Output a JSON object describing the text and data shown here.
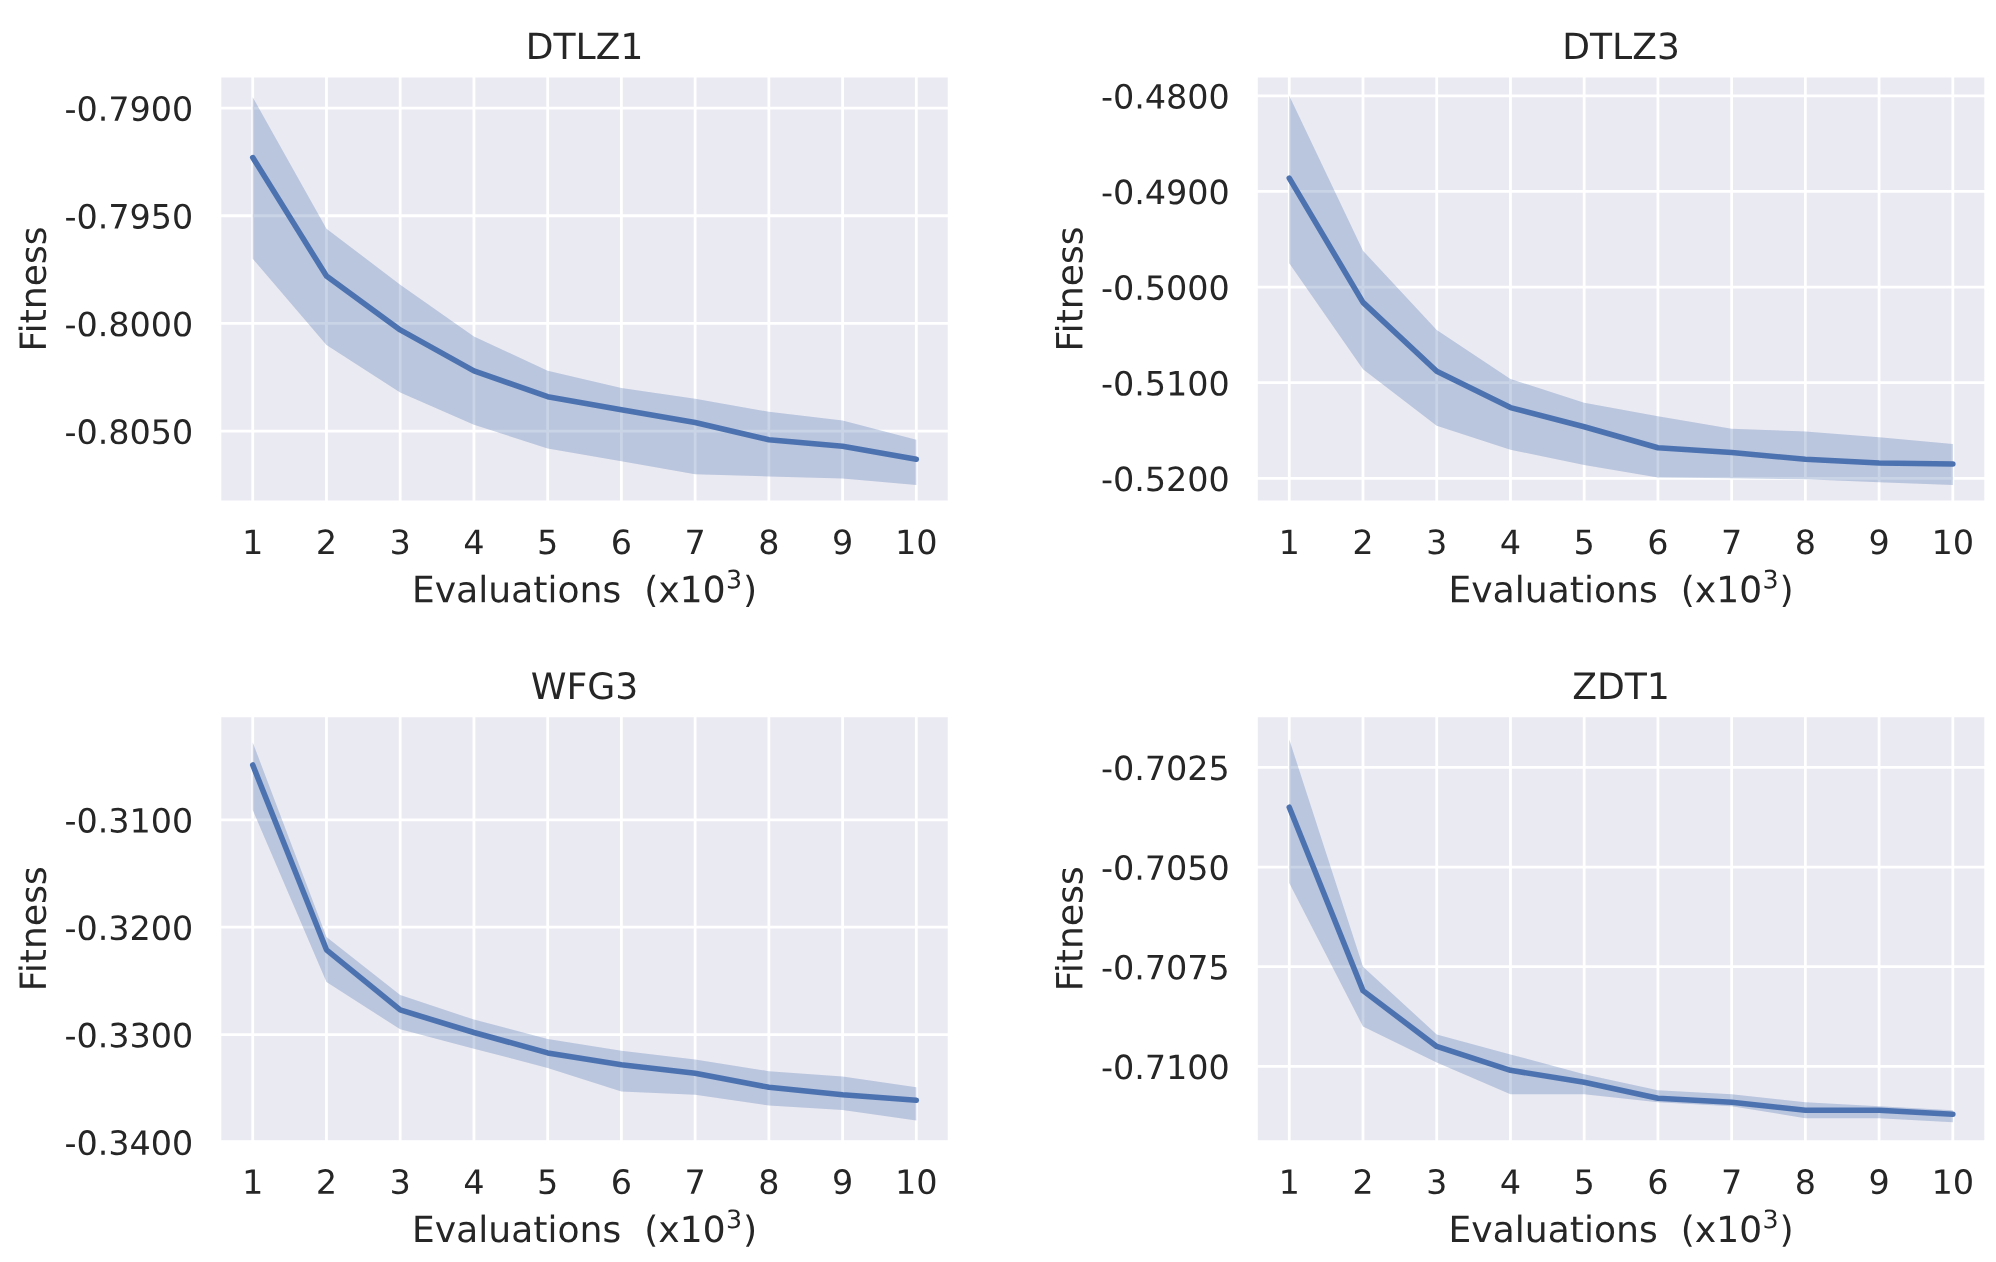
{
  "chart_data": [
    {
      "type": "line",
      "title": "DTLZ1",
      "xlabel": "Evaluations  (x10$^{3}$)",
      "ylabel": "Fitness",
      "x": [
        1,
        2,
        3,
        4,
        5,
        6,
        7,
        8,
        9,
        10
      ],
      "xlim": [
        0.55,
        10.45
      ],
      "xticks": [
        1,
        2,
        3,
        4,
        5,
        6,
        7,
        8,
        9,
        10
      ],
      "ylim": [
        -0.8083,
        -0.7885
      ],
      "yticks": [
        {
          "value": -0.805,
          "label": "-0.8050"
        },
        {
          "value": -0.8,
          "label": "-0.8000"
        },
        {
          "value": -0.795,
          "label": "-0.7950"
        },
        {
          "value": -0.79,
          "label": "-0.7900"
        }
      ],
      "grid": true,
      "legend": false,
      "series": [
        {
          "color": "#4c72b0",
          "values": [
            -0.7923,
            -0.7978,
            -0.8003,
            -0.8022,
            -0.8034,
            -0.804,
            -0.8046,
            -0.8054,
            -0.8057,
            -0.8063
          ],
          "upper": [
            -0.7895,
            -0.7956,
            -0.7982,
            -0.8006,
            -0.8022,
            -0.803,
            -0.8035,
            -0.8041,
            -0.8045,
            -0.8054
          ],
          "lower": [
            -0.797,
            -0.801,
            -0.8032,
            -0.8047,
            -0.8058,
            -0.8064,
            -0.807,
            -0.8071,
            -0.8072,
            -0.8075
          ]
        }
      ]
    },
    {
      "type": "line",
      "title": "DTLZ3",
      "xlabel": "Evaluations  (x10$^{3}$)",
      "ylabel": "Fitness",
      "x": [
        1,
        2,
        3,
        4,
        5,
        6,
        7,
        8,
        9,
        10
      ],
      "xlim": [
        0.55,
        10.45
      ],
      "xticks": [
        1,
        2,
        3,
        4,
        5,
        6,
        7,
        8,
        9,
        10
      ],
      "ylim": [
        -0.5225,
        -0.4779
      ],
      "yticks": [
        {
          "value": -0.52,
          "label": "-0.5200"
        },
        {
          "value": -0.51,
          "label": "-0.5100"
        },
        {
          "value": -0.5,
          "label": "-0.5000"
        },
        {
          "value": -0.49,
          "label": "-0.4900"
        },
        {
          "value": -0.48,
          "label": "-0.4800"
        }
      ],
      "grid": true,
      "legend": false,
      "series": [
        {
          "color": "#4c72b0",
          "values": [
            -0.4886,
            -0.5016,
            -0.5088,
            -0.5126,
            -0.5146,
            -0.5168,
            -0.5173,
            -0.518,
            -0.5184,
            -0.5185
          ],
          "upper": [
            -0.48,
            -0.4962,
            -0.5045,
            -0.5096,
            -0.5121,
            -0.5135,
            -0.5148,
            -0.5151,
            -0.5157,
            -0.5164
          ],
          "lower": [
            -0.4975,
            -0.5086,
            -0.5145,
            -0.517,
            -0.5186,
            -0.5199,
            -0.52,
            -0.5201,
            -0.5204,
            -0.5207
          ]
        }
      ]
    },
    {
      "type": "line",
      "title": "WFG3",
      "xlabel": "Evaluations  (x10$^{3}$)",
      "ylabel": "Fitness",
      "x": [
        1,
        2,
        3,
        4,
        5,
        6,
        7,
        8,
        9,
        10
      ],
      "xlim": [
        0.55,
        10.45
      ],
      "xticks": [
        1,
        2,
        3,
        4,
        5,
        6,
        7,
        8,
        9,
        10
      ],
      "ylim": [
        -0.34,
        -0.3003
      ],
      "yticks": [
        {
          "value": -0.34,
          "label": "-0.3400"
        },
        {
          "value": -0.33,
          "label": "-0.3300"
        },
        {
          "value": -0.32,
          "label": "-0.3200"
        },
        {
          "value": -0.31,
          "label": "-0.3100"
        }
      ],
      "grid": true,
      "legend": false,
      "series": [
        {
          "color": "#4c72b0",
          "values": [
            -0.3049,
            -0.3221,
            -0.3277,
            -0.3298,
            -0.3317,
            -0.3328,
            -0.3336,
            -0.3349,
            -0.3356,
            -0.3361
          ],
          "upper": [
            -0.3028,
            -0.3209,
            -0.3263,
            -0.3286,
            -0.3304,
            -0.3315,
            -0.3323,
            -0.3334,
            -0.3339,
            -0.3349
          ],
          "lower": [
            -0.3091,
            -0.3251,
            -0.3295,
            -0.3313,
            -0.3331,
            -0.3353,
            -0.3356,
            -0.3366,
            -0.337,
            -0.338
          ]
        }
      ]
    },
    {
      "type": "line",
      "title": "ZDT1",
      "xlabel": "Evaluations  (x10$^{3}$)",
      "ylabel": "Fitness",
      "x": [
        1,
        2,
        3,
        4,
        5,
        6,
        7,
        8,
        9,
        10
      ],
      "xlim": [
        0.55,
        10.45
      ],
      "xticks": [
        1,
        2,
        3,
        4,
        5,
        6,
        7,
        8,
        9,
        10
      ],
      "ylim": [
        -0.7119,
        -0.7012
      ],
      "yticks": [
        {
          "value": -0.71,
          "label": "-0.7100"
        },
        {
          "value": -0.7075,
          "label": "-0.7075"
        },
        {
          "value": -0.705,
          "label": "-0.7050"
        },
        {
          "value": -0.7025,
          "label": "-0.7025"
        }
      ],
      "grid": true,
      "legend": false,
      "series": [
        {
          "color": "#4c72b0",
          "values": [
            -0.7035,
            -0.7081,
            -0.7095,
            -0.7101,
            -0.7104,
            -0.7108,
            -0.7109,
            -0.7111,
            -0.7111,
            -0.7112
          ],
          "upper": [
            -0.7018,
            -0.7075,
            -0.7092,
            -0.7097,
            -0.7102,
            -0.7106,
            -0.7107,
            -0.7109,
            -0.711,
            -0.7111
          ],
          "lower": [
            -0.7054,
            -0.709,
            -0.7099,
            -0.7107,
            -0.7107,
            -0.7109,
            -0.711,
            -0.7113,
            -0.7113,
            -0.7114
          ]
        }
      ]
    }
  ]
}
